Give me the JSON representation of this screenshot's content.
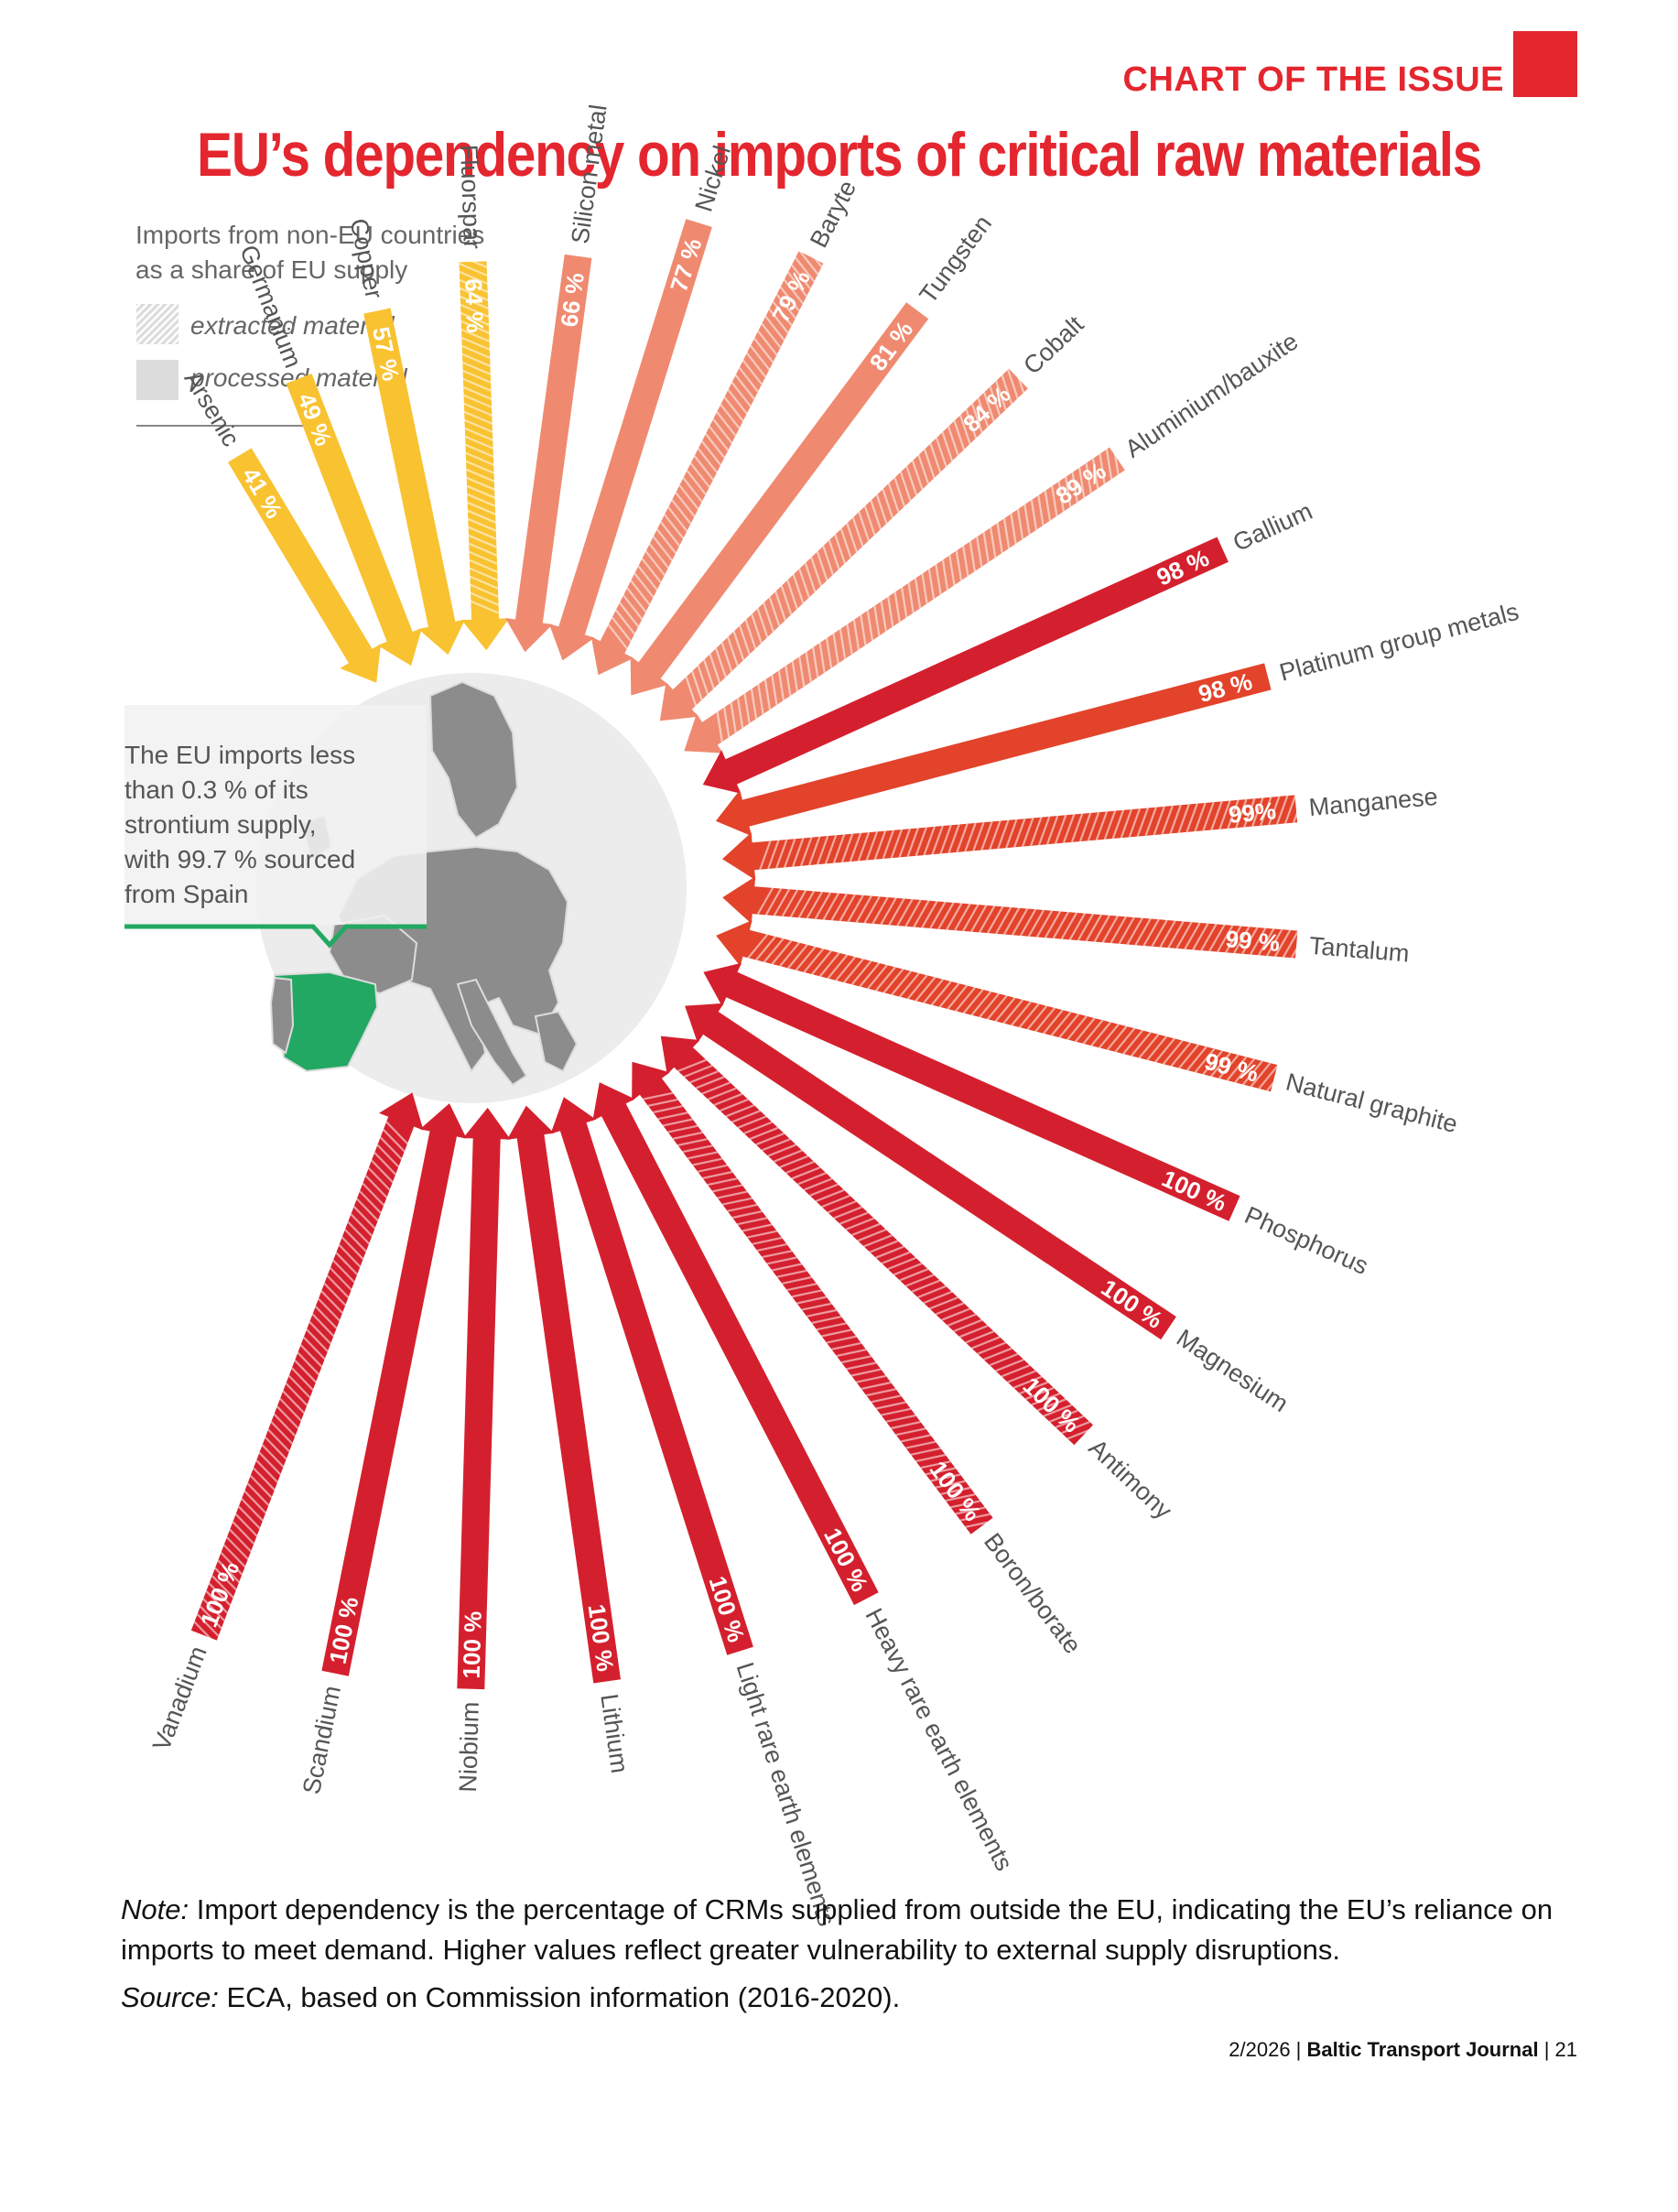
{
  "header": {
    "kicker": "CHART OF THE ISSUE",
    "title": "EU’s dependency on imports of critical raw materials"
  },
  "legend": {
    "title_line1": "Imports from non-EU countries",
    "title_line2": "as a share of EU supply",
    "extracted": "extracted material",
    "processed": "processed material"
  },
  "callout": {
    "lines": [
      "The EU imports less",
      "than 0.3 % of its",
      "strontium supply,",
      "with 99.7 % sourced",
      "from Spain"
    ]
  },
  "chart_data": {
    "type": "bar",
    "layout": "radial",
    "value_unit": "%",
    "colors": {
      "yellow": "#f9c231",
      "salmon": "#ef8a70",
      "orange": "#e2432a",
      "red": "#d4202e",
      "map_land": "#8c8c8c",
      "spain": "#22a862",
      "globe": "#ececec"
    },
    "items": [
      {
        "name": "Arsenic",
        "value": 41,
        "label": "41 %",
        "type": "processed",
        "color": "yellow"
      },
      {
        "name": "Germanium",
        "value": 49,
        "label": "49 %",
        "type": "processed",
        "color": "yellow"
      },
      {
        "name": "Copper",
        "value": 57,
        "label": "57 %",
        "type": "processed",
        "color": "yellow"
      },
      {
        "name": "Fluorspar",
        "value": 64,
        "label": "64 %",
        "type": "extracted",
        "color": "yellow"
      },
      {
        "name": "Silicon metal",
        "value": 66,
        "label": "66 %",
        "type": "processed",
        "color": "salmon"
      },
      {
        "name": "Nickel",
        "value": 77,
        "label": "77 %",
        "type": "processed",
        "color": "salmon"
      },
      {
        "name": "Baryte",
        "value": 79,
        "label": "79 %",
        "type": "extracted",
        "color": "salmon"
      },
      {
        "name": "Tungsten",
        "value": 81,
        "label": "81 %",
        "type": "processed",
        "color": "salmon"
      },
      {
        "name": "Cobalt",
        "value": 84,
        "label": "84 %",
        "type": "extracted",
        "color": "salmon"
      },
      {
        "name": "Aluminium/bauxite",
        "value": 89,
        "label": "89 %",
        "type": "extracted",
        "color": "salmon"
      },
      {
        "name": "Gallium",
        "value": 98,
        "label": "98 %",
        "type": "processed",
        "color": "red"
      },
      {
        "name": "Platinum group metals",
        "value": 98,
        "label": "98 %",
        "type": "processed",
        "color": "orange"
      },
      {
        "name": "Manganese",
        "value": 99,
        "label": "99%",
        "type": "extracted",
        "color": "orange"
      },
      {
        "name": "Tantalum",
        "value": 99,
        "label": "99 %",
        "type": "extracted",
        "color": "orange"
      },
      {
        "name": "Natural graphite",
        "value": 99,
        "label": "99 %",
        "type": "extracted",
        "color": "orange"
      },
      {
        "name": "Phosphorus",
        "value": 100,
        "label": "100 %",
        "type": "processed",
        "color": "red"
      },
      {
        "name": "Magnesium",
        "value": 100,
        "label": "100 %",
        "type": "processed",
        "color": "red"
      },
      {
        "name": "Antimony",
        "value": 100,
        "label": "100 %",
        "type": "extracted",
        "color": "red"
      },
      {
        "name": "Boron/borate",
        "value": 100,
        "label": "100 %",
        "type": "extracted",
        "color": "red"
      },
      {
        "name": "Heavy rare earth elements",
        "value": 100,
        "label": "100 %",
        "type": "processed",
        "color": "red"
      },
      {
        "name": "Light rare earth elements",
        "value": 100,
        "label": "100 %",
        "type": "processed",
        "color": "red"
      },
      {
        "name": "Lithium",
        "value": 100,
        "label": "100 %",
        "type": "processed",
        "color": "red"
      },
      {
        "name": "Niobium",
        "value": 100,
        "label": "100 %",
        "type": "processed",
        "color": "red"
      },
      {
        "name": "Scandium",
        "value": 100,
        "label": "100 %",
        "type": "processed",
        "color": "red"
      },
      {
        "name": "Vanadium",
        "value": 100,
        "label": "100 %",
        "type": "extracted",
        "color": "red"
      }
    ]
  },
  "note": {
    "label": "Note:",
    "text": " Import dependency is the percentage of CRMs supplied from outside the EU, indicating the EU’s reliance on imports to meet demand. Higher values reflect greater vulnerability to external supply disruptions."
  },
  "source": {
    "label": "Source:",
    "text": " ECA, based on Commission information (2016-2020)."
  },
  "footer": {
    "issue": "2/2026 | ",
    "journal": "Baltic Transport Journal",
    "page": " | 21"
  }
}
